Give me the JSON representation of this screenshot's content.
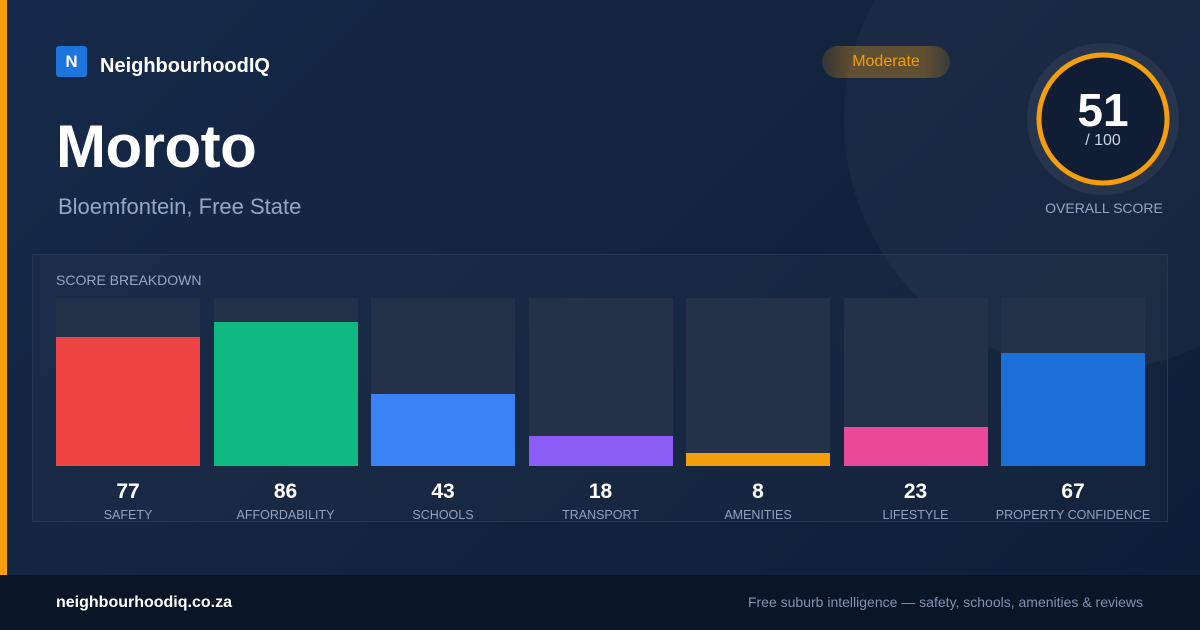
{
  "brand": {
    "logo_letter": "N",
    "name": "NeighbourhoodIQ"
  },
  "suburb": {
    "name": "Moroto",
    "location": "Bloemfontein, Free State"
  },
  "badge": {
    "label": "Moderate",
    "color": "#f59e0b"
  },
  "overall": {
    "value": "51",
    "max_label": "/ 100",
    "label": "OVERALL SCORE",
    "max": 100
  },
  "breakdown": {
    "title": "SCORE BREAKDOWN"
  },
  "chart_data": {
    "type": "bar",
    "categories": [
      "SAFETY",
      "AFFORDABILITY",
      "SCHOOLS",
      "TRANSPORT",
      "AMENITIES",
      "LIFESTYLE",
      "PROPERTY CONFIDENCE"
    ],
    "values": [
      77,
      86,
      43,
      18,
      8,
      23,
      67
    ],
    "colors": [
      "#ef4444",
      "#10b981",
      "#3b82f6",
      "#8b5cf6",
      "#f59e0b",
      "#ec4899",
      "#1d6fd8"
    ],
    "ylim": [
      0,
      100
    ],
    "title": "",
    "xlabel": "",
    "ylabel": ""
  },
  "footer": {
    "url": "neighbourhoodiq.co.za",
    "tagline": "Free suburb intelligence — safety, schools, amenities & reviews"
  }
}
